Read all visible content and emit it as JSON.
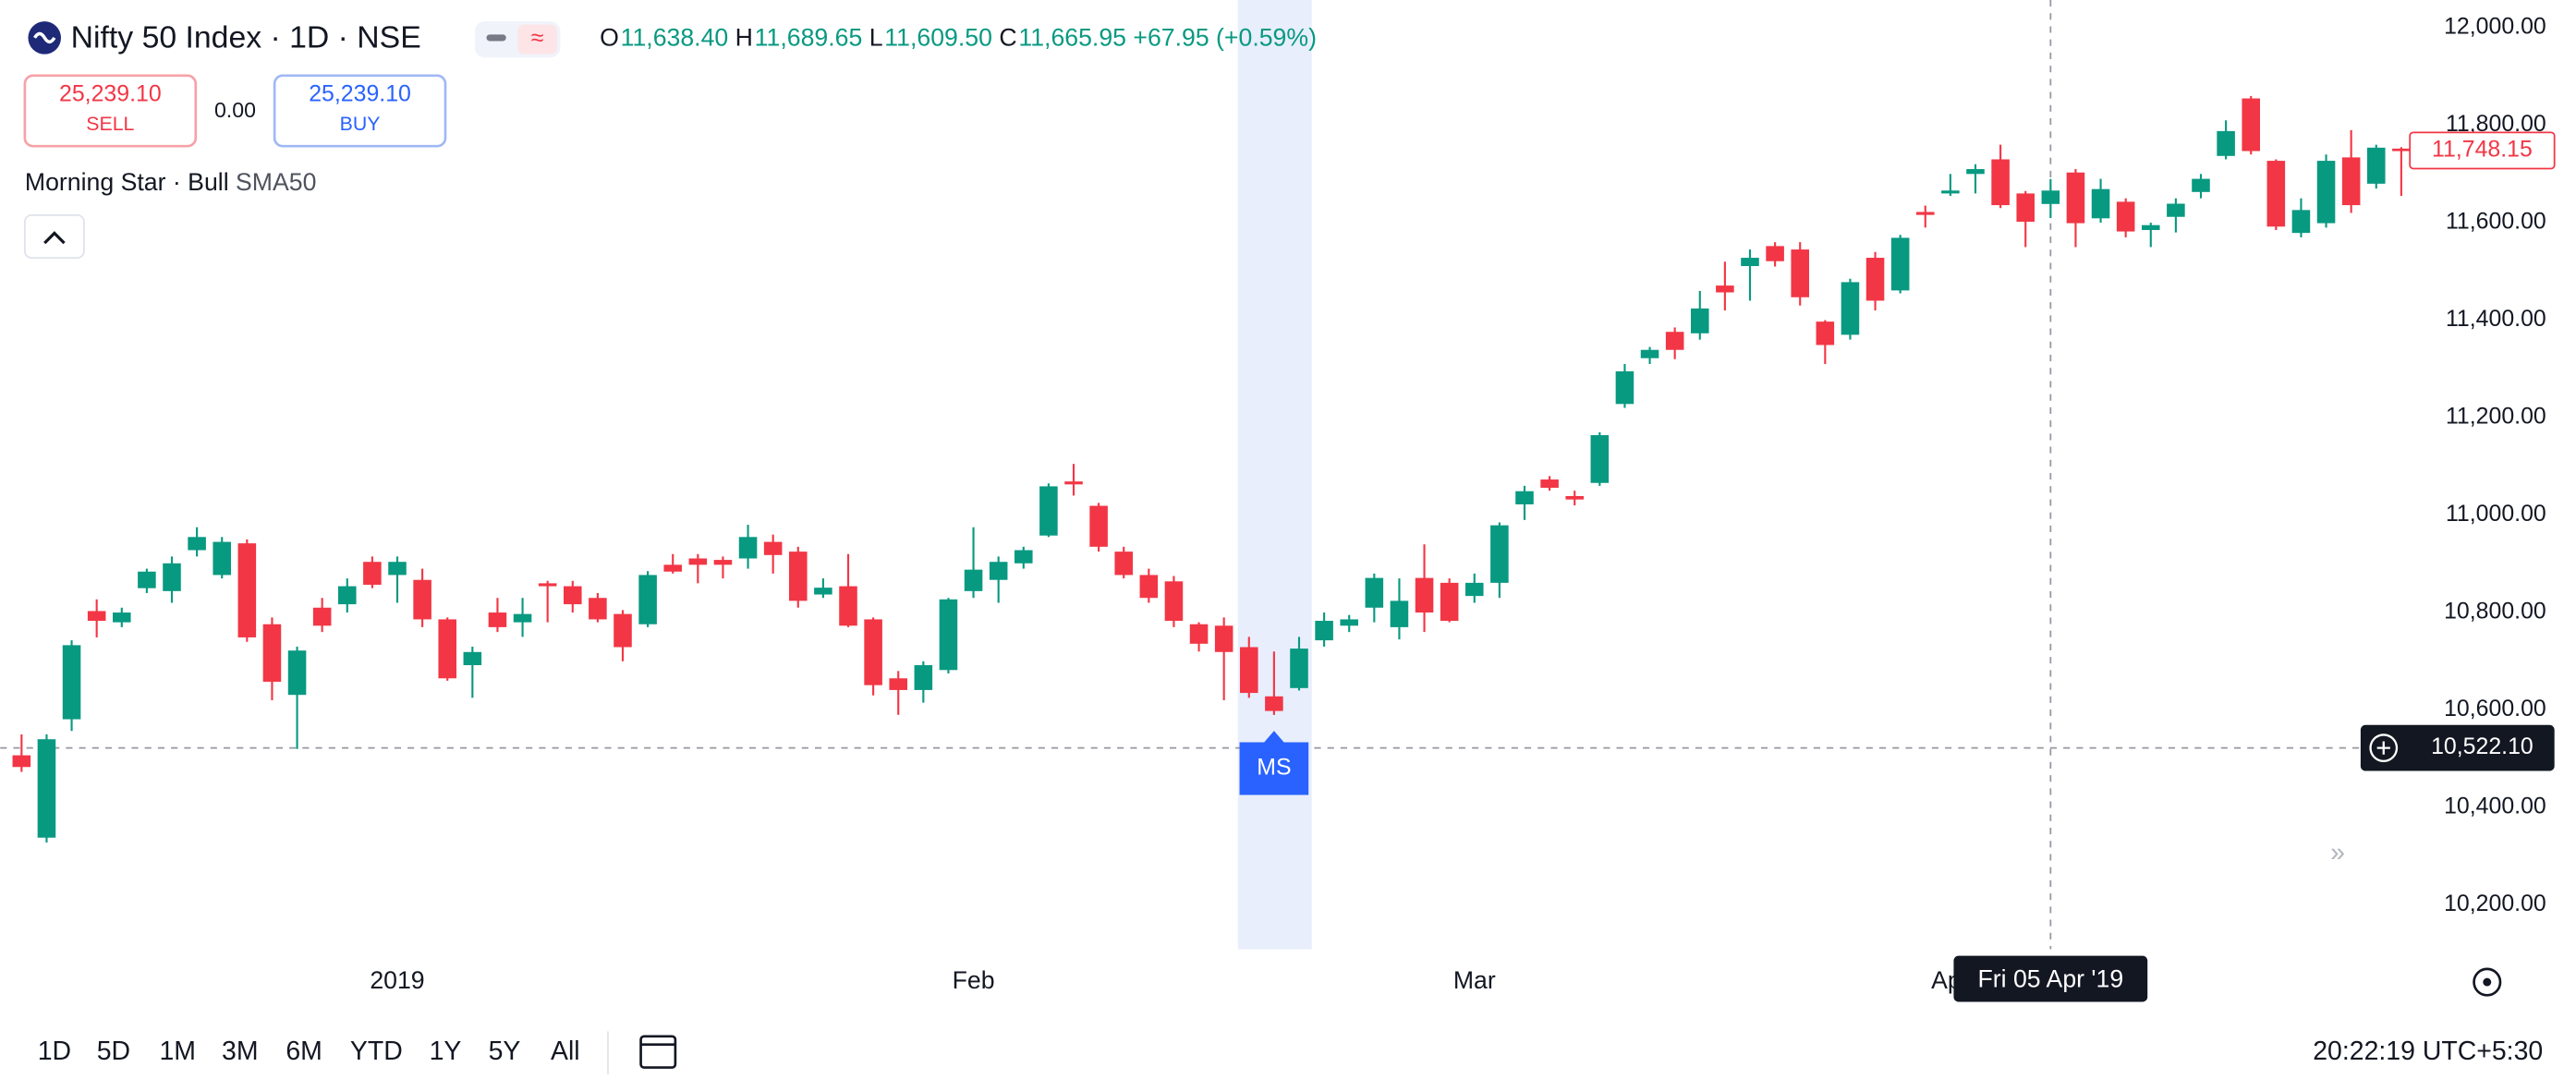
{
  "header": {
    "title": "Nifty 50 Index · 1D · NSE",
    "ohlc": [
      {
        "key": "O",
        "value": "11,638.40"
      },
      {
        "key": "H",
        "value": "11,689.65"
      },
      {
        "key": "L",
        "value": "11,609.50"
      },
      {
        "key": "C",
        "value": "11,665.95"
      }
    ],
    "change": "+67.95 (+0.59%)",
    "sell": {
      "price": "25,239.10",
      "label": "SELL"
    },
    "spread": "0.00",
    "buy": {
      "price": "25,239.10",
      "label": "BUY"
    },
    "indicator": {
      "name": "Morning Star · Bull",
      "param": "SMA50"
    }
  },
  "toolbar": {
    "ranges": [
      "1D",
      "5D",
      "1M",
      "3M",
      "6M",
      "YTD",
      "1Y",
      "5Y",
      "All"
    ],
    "time": "20:22:19 UTC+5:30"
  },
  "chart_data": {
    "type": "candlestick",
    "title": "Nifty 50 Index",
    "up_color": "#089981",
    "down_color": "#f23645",
    "grid": false,
    "open": [
      10507,
      10338,
      10581,
      10803,
      10780,
      10850,
      10844,
      10928,
      10877,
      10942,
      10776,
      10631,
      10810,
      10817,
      10904,
      10877,
      10867,
      10786,
      10692,
      10800,
      10780,
      10860,
      10854,
      10830,
      10797,
      10776,
      10898,
      10911,
      10908,
      10911,
      10945,
      10925,
      10837,
      10854,
      10786,
      10665,
      10641,
      10682,
      10844,
      10867,
      10901,
      10958,
      11069,
      11019,
      10925,
      10877,
      10864,
      10776,
      10773,
      10729,
      10628,
      10645,
      10743,
      10773,
      10810,
      10770,
      10871,
      10861,
      10834,
      10861,
      11022,
      11073,
      11039,
      11066,
      11228,
      11322,
      11376,
      11373,
      11471,
      11511,
      11552,
      11545,
      11397,
      11370,
      11528,
      11461,
      11622,
      11660,
      11700,
      11730,
      11660,
      11638.4,
      11703,
      11609,
      11643,
      11585,
      11612,
      11663,
      11737,
      11855,
      11727,
      11579,
      11599,
      11734,
      11680,
      11752
    ],
    "high": [
      10550,
      10550,
      10743,
      10827,
      10810,
      10890,
      10915,
      10975,
      10955,
      10950,
      10790,
      10730,
      10830,
      10870,
      10915,
      10915,
      10890,
      10790,
      10730,
      10830,
      10830,
      10865,
      10865,
      10840,
      10805,
      10885,
      10920,
      10920,
      10915,
      10980,
      10960,
      10935,
      10870,
      10920,
      10790,
      10680,
      10700,
      10830,
      10975,
      10915,
      10935,
      11065,
      11105,
      11025,
      10935,
      10890,
      10875,
      10780,
      10790,
      10750,
      10720,
      10750,
      10800,
      10795,
      10880,
      10870,
      10940,
      10870,
      10880,
      10985,
      11060,
      11080,
      11050,
      11170,
      11310,
      11345,
      11385,
      11460,
      11520,
      11545,
      11560,
      11560,
      11400,
      11485,
      11540,
      11575,
      11635,
      11700,
      11720,
      11760,
      11665,
      11689.65,
      11710,
      11690,
      11650,
      11600,
      11650,
      11700,
      11810,
      11860,
      11730,
      11650,
      11740,
      11790,
      11760,
      11755
    ],
    "low": [
      10473,
      10328,
      10557,
      10749,
      10770,
      10840,
      10820,
      10915,
      10870,
      10740,
      10620,
      10520,
      10760,
      10800,
      10850,
      10820,
      10770,
      10660,
      10625,
      10760,
      10750,
      10780,
      10800,
      10780,
      10700,
      10770,
      10880,
      10860,
      10870,
      10890,
      10880,
      10810,
      10830,
      10770,
      10630,
      10590,
      10615,
      10675,
      10830,
      10820,
      10890,
      10955,
      11040,
      10925,
      10870,
      10820,
      10770,
      10720,
      10620,
      10625,
      10590,
      10640,
      10730,
      10760,
      10780,
      10745,
      10760,
      10780,
      10820,
      10830,
      10990,
      11050,
      11020,
      11060,
      11220,
      11310,
      11320,
      11360,
      11420,
      11440,
      11510,
      11430,
      11310,
      11360,
      11420,
      11455,
      11590,
      11655,
      11660,
      11630,
      11550,
      11609.5,
      11550,
      11600,
      11570,
      11550,
      11580,
      11650,
      11730,
      11740,
      11585,
      11570,
      11590,
      11620,
      11670,
      11655
    ],
    "close": [
      10483,
      10540,
      10733,
      10783,
      10800,
      10884,
      10901,
      10955,
      10945,
      10749,
      10658,
      10722,
      10773,
      10854,
      10857,
      10904,
      10786,
      10665,
      10719,
      10770,
      10797,
      10854,
      10817,
      10786,
      10729,
      10877,
      10884,
      10898,
      10898,
      10955,
      10918,
      10824,
      10851,
      10773,
      10651,
      10641,
      10692,
      10827,
      10888,
      10904,
      10928,
      11059,
      11063,
      10935,
      10877,
      10830,
      10783,
      10736,
      10719,
      10635,
      10598,
      10726,
      10783,
      10786,
      10871,
      10824,
      10800,
      10783,
      10861,
      10979,
      11049,
      11056,
      11032,
      11164,
      11295,
      11339,
      11339,
      11424,
      11457,
      11528,
      11521,
      11447,
      11349,
      11478,
      11440,
      11569,
      11616,
      11666,
      11710,
      11636,
      11602,
      11665.95,
      11599,
      11669,
      11582,
      11595,
      11639,
      11690,
      11788,
      11747,
      11592,
      11626,
      11727,
      11636,
      11754,
      11748.15
    ],
    "ylim": [
      10109,
      12057
    ],
    "yticks": [
      {
        "value": 10200,
        "label": "10,200.00"
      },
      {
        "value": 10400,
        "label": "10,400.00"
      },
      {
        "value": 10600,
        "label": "10,600.00"
      },
      {
        "value": 10800,
        "label": "10,800.00"
      },
      {
        "value": 11000,
        "label": "11,000.00"
      },
      {
        "value": 11200,
        "label": "11,200.00"
      },
      {
        "value": 11400,
        "label": "11,400.00"
      },
      {
        "value": 11600,
        "label": "11,600.00"
      },
      {
        "value": 11800,
        "label": "11,800.00"
      },
      {
        "value": 12000,
        "label": "12,000.00"
      }
    ],
    "xticks": [
      {
        "value": 15,
        "label": "2019"
      },
      {
        "value": 38,
        "label": "Feb"
      },
      {
        "value": 58,
        "label": "Mar"
      },
      {
        "value": 77,
        "label": "Apr"
      }
    ],
    "last_price": {
      "value": 11748.15,
      "label": "11,748.15"
    },
    "crosshair": {
      "index": 81,
      "date_label": "Fri 05 Apr '19",
      "value": 10522.1,
      "label": "10,522.10"
    },
    "pattern": {
      "index": 50,
      "label": "MS"
    }
  }
}
